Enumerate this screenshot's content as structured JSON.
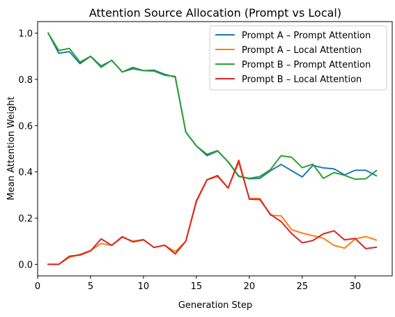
{
  "chart_data": {
    "type": "line",
    "title": "Attention Source Allocation (Prompt vs Local)",
    "xlabel": "Generation Step",
    "ylabel": "Mean Attention Weight",
    "xlim": [
      0,
      33.5
    ],
    "ylim": [
      -0.05,
      1.05
    ],
    "xticks": [
      0,
      5,
      10,
      15,
      20,
      25,
      30
    ],
    "yticks": [
      0.0,
      0.2,
      0.4,
      0.6,
      0.8,
      1.0
    ],
    "xtick_labels": [
      "0",
      "5",
      "10",
      "15",
      "20",
      "25",
      "30"
    ],
    "ytick_labels": [
      "0.0",
      "0.2",
      "0.4",
      "0.6",
      "0.8",
      "1.0"
    ],
    "grid": false,
    "legend_position": "top-right",
    "x": [
      1,
      2,
      3,
      4,
      5,
      6,
      7,
      8,
      9,
      10,
      11,
      12,
      13,
      14,
      15,
      16,
      17,
      18,
      19,
      20,
      21,
      22,
      23,
      24,
      25,
      26,
      27,
      28,
      29,
      30,
      31,
      32
    ],
    "series": [
      {
        "name": "Prompt A – Prompt Attention",
        "color": "#1f77b4",
        "values": [
          1.0,
          0.913,
          0.92,
          0.868,
          0.9,
          0.858,
          0.882,
          0.832,
          0.846,
          0.838,
          0.84,
          0.822,
          0.81,
          0.572,
          0.512,
          0.47,
          0.49,
          0.444,
          0.382,
          0.37,
          0.372,
          0.405,
          0.432,
          0.405,
          0.378,
          0.428,
          0.417,
          0.413,
          0.387,
          0.407,
          0.407,
          0.383
        ]
      },
      {
        "name": "Prompt A – Local Attention",
        "color": "#ff7f0e",
        "values": [
          0.0,
          0.0,
          0.03,
          0.043,
          0.06,
          0.09,
          0.082,
          0.117,
          0.1,
          0.107,
          0.073,
          0.082,
          0.055,
          0.1,
          0.27,
          0.365,
          0.38,
          0.33,
          0.44,
          0.285,
          0.285,
          0.212,
          0.21,
          0.15,
          0.135,
          0.124,
          0.113,
          0.082,
          0.07,
          0.11,
          0.12,
          0.105
        ]
      },
      {
        "name": "Prompt B – Prompt Attention",
        "color": "#2ca02c",
        "values": [
          1.0,
          0.925,
          0.934,
          0.875,
          0.9,
          0.852,
          0.883,
          0.832,
          0.852,
          0.838,
          0.836,
          0.818,
          0.813,
          0.572,
          0.512,
          0.476,
          0.492,
          0.443,
          0.38,
          0.372,
          0.38,
          0.41,
          0.47,
          0.463,
          0.418,
          0.433,
          0.372,
          0.397,
          0.385,
          0.368,
          0.37,
          0.405
        ]
      },
      {
        "name": "Prompt B – Local Attention",
        "color": "#d62728",
        "values": [
          0.0,
          0.0,
          0.035,
          0.04,
          0.058,
          0.11,
          0.082,
          0.12,
          0.097,
          0.106,
          0.073,
          0.083,
          0.045,
          0.1,
          0.275,
          0.366,
          0.384,
          0.33,
          0.45,
          0.282,
          0.28,
          0.216,
          0.185,
          0.133,
          0.093,
          0.103,
          0.132,
          0.145,
          0.106,
          0.112,
          0.068,
          0.074
        ]
      }
    ]
  }
}
